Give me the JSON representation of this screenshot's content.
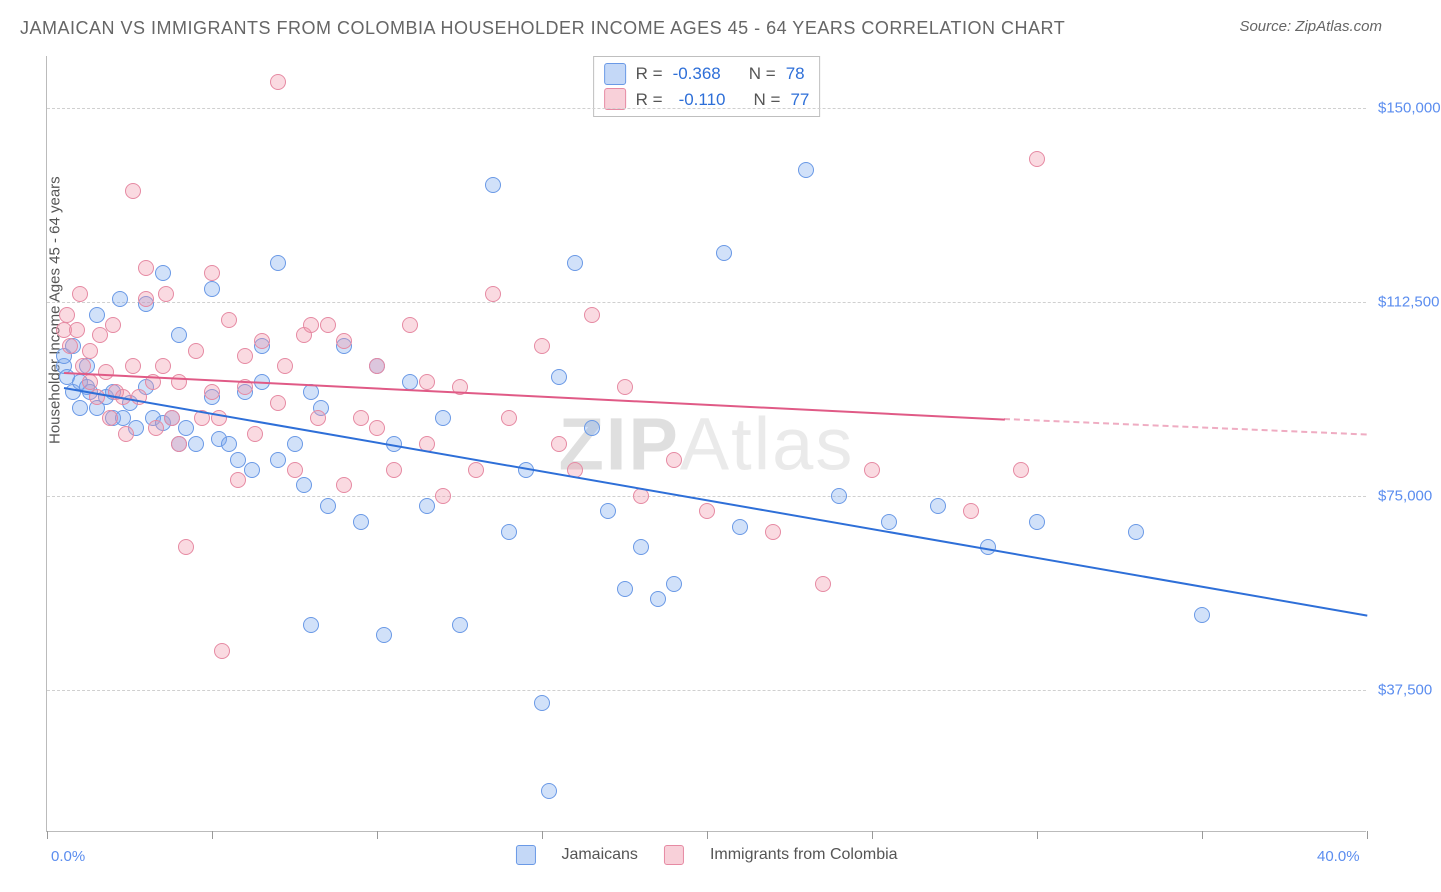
{
  "title": "JAMAICAN VS IMMIGRANTS FROM COLOMBIA HOUSEHOLDER INCOME AGES 45 - 64 YEARS CORRELATION CHART",
  "source": "Source: ZipAtlas.com",
  "ylabel": "Householder Income Ages 45 - 64 years",
  "watermark_a": "ZIP",
  "watermark_b": "Atlas",
  "chart": {
    "type": "scatter",
    "xlim": [
      0,
      40
    ],
    "ylim": [
      10000,
      160000
    ],
    "xticks": [
      0,
      5,
      10,
      15,
      20,
      25,
      30,
      35,
      40
    ],
    "xtick_labels": {
      "0": "0.0%",
      "40": "40.0%"
    },
    "yticks": [
      37500,
      75000,
      112500,
      150000
    ],
    "ytick_labels": [
      "$37,500",
      "$75,000",
      "$112,500",
      "$150,000"
    ],
    "grid_color": "#d0d0d0",
    "background": "#ffffff",
    "marker_radius": 8,
    "series": [
      {
        "key": "a",
        "name": "Jamaicans",
        "color": "#6a99e6",
        "fill": "rgba(124,169,237,.35)",
        "R": "-0.368",
        "N": "78",
        "trend": {
          "x1": 0.5,
          "y1": 96000,
          "x2": 40,
          "y2": 52000,
          "dash_after": 40
        },
        "points": [
          [
            0.5,
            100000
          ],
          [
            0.5,
            102000
          ],
          [
            0.6,
            98000
          ],
          [
            0.8,
            104000
          ],
          [
            0.8,
            95000
          ],
          [
            1.0,
            97000
          ],
          [
            1.0,
            92000
          ],
          [
            1.2,
            96000
          ],
          [
            1.2,
            100000
          ],
          [
            1.3,
            95000
          ],
          [
            1.5,
            110000
          ],
          [
            1.5,
            92000
          ],
          [
            1.8,
            94000
          ],
          [
            2.0,
            90000
          ],
          [
            2.0,
            95000
          ],
          [
            2.2,
            113000
          ],
          [
            2.3,
            90000
          ],
          [
            2.5,
            93000
          ],
          [
            2.7,
            88000
          ],
          [
            3.0,
            112000
          ],
          [
            3.0,
            96000
          ],
          [
            3.2,
            90000
          ],
          [
            3.5,
            118000
          ],
          [
            3.5,
            89000
          ],
          [
            3.8,
            90000
          ],
          [
            4.0,
            106000
          ],
          [
            4.0,
            85000
          ],
          [
            4.2,
            88000
          ],
          [
            4.5,
            85000
          ],
          [
            5.0,
            115000
          ],
          [
            5.0,
            94000
          ],
          [
            5.2,
            86000
          ],
          [
            5.5,
            85000
          ],
          [
            5.8,
            82000
          ],
          [
            6.0,
            95000
          ],
          [
            6.2,
            80000
          ],
          [
            6.5,
            97000
          ],
          [
            6.5,
            104000
          ],
          [
            7.0,
            120000
          ],
          [
            7.0,
            82000
          ],
          [
            7.5,
            85000
          ],
          [
            7.8,
            77000
          ],
          [
            8.0,
            95000
          ],
          [
            8.0,
            50000
          ],
          [
            8.3,
            92000
          ],
          [
            8.5,
            73000
          ],
          [
            9.0,
            104000
          ],
          [
            9.5,
            70000
          ],
          [
            10.0,
            100000
          ],
          [
            10.2,
            48000
          ],
          [
            10.5,
            85000
          ],
          [
            11.0,
            97000
          ],
          [
            11.5,
            73000
          ],
          [
            12.0,
            90000
          ],
          [
            12.5,
            50000
          ],
          [
            13.5,
            135000
          ],
          [
            14.0,
            68000
          ],
          [
            14.5,
            80000
          ],
          [
            15.0,
            35000
          ],
          [
            15.2,
            18000
          ],
          [
            15.5,
            98000
          ],
          [
            16.0,
            120000
          ],
          [
            16.5,
            88000
          ],
          [
            17.0,
            72000
          ],
          [
            17.5,
            57000
          ],
          [
            18.0,
            65000
          ],
          [
            18.5,
            55000
          ],
          [
            19.0,
            58000
          ],
          [
            20.5,
            122000
          ],
          [
            21.0,
            69000
          ],
          [
            23.0,
            138000
          ],
          [
            24.0,
            75000
          ],
          [
            25.5,
            70000
          ],
          [
            27.0,
            73000
          ],
          [
            28.5,
            65000
          ],
          [
            30.0,
            70000
          ],
          [
            33.0,
            68000
          ],
          [
            35.0,
            52000
          ]
        ]
      },
      {
        "key": "b",
        "name": "Immigrants from Colombia",
        "color": "#e68aa3",
        "fill": "rgba(240,150,170,.35)",
        "R": "-0.110",
        "N": "77",
        "trend": {
          "x1": 0.5,
          "y1": 99000,
          "x2": 29,
          "y2": 90000,
          "dash_after": 29,
          "x3": 40,
          "y3": 87000
        },
        "points": [
          [
            0.5,
            107000
          ],
          [
            0.6,
            110000
          ],
          [
            0.7,
            104000
          ],
          [
            0.9,
            107000
          ],
          [
            1.0,
            114000
          ],
          [
            1.1,
            100000
          ],
          [
            1.3,
            103000
          ],
          [
            1.3,
            97000
          ],
          [
            1.5,
            94000
          ],
          [
            1.6,
            106000
          ],
          [
            1.8,
            99000
          ],
          [
            1.9,
            90000
          ],
          [
            2.0,
            108000
          ],
          [
            2.1,
            95000
          ],
          [
            2.3,
            94000
          ],
          [
            2.4,
            87000
          ],
          [
            2.6,
            134000
          ],
          [
            2.6,
            100000
          ],
          [
            2.8,
            94000
          ],
          [
            3.0,
            119000
          ],
          [
            3.0,
            113000
          ],
          [
            3.2,
            97000
          ],
          [
            3.3,
            88000
          ],
          [
            3.5,
            100000
          ],
          [
            3.6,
            114000
          ],
          [
            3.8,
            90000
          ],
          [
            4.0,
            97000
          ],
          [
            4.0,
            85000
          ],
          [
            4.2,
            65000
          ],
          [
            4.5,
            103000
          ],
          [
            4.7,
            90000
          ],
          [
            5.0,
            118000
          ],
          [
            5.0,
            95000
          ],
          [
            5.2,
            90000
          ],
          [
            5.3,
            45000
          ],
          [
            5.5,
            109000
          ],
          [
            5.8,
            78000
          ],
          [
            6.0,
            96000
          ],
          [
            6.0,
            102000
          ],
          [
            6.3,
            87000
          ],
          [
            6.5,
            105000
          ],
          [
            7.0,
            93000
          ],
          [
            7.0,
            155000
          ],
          [
            7.2,
            100000
          ],
          [
            7.5,
            80000
          ],
          [
            7.8,
            106000
          ],
          [
            8.0,
            108000
          ],
          [
            8.2,
            90000
          ],
          [
            8.5,
            108000
          ],
          [
            9.0,
            105000
          ],
          [
            9.0,
            77000
          ],
          [
            9.5,
            90000
          ],
          [
            10.0,
            100000
          ],
          [
            10.0,
            88000
          ],
          [
            10.5,
            80000
          ],
          [
            11.0,
            108000
          ],
          [
            11.5,
            97000
          ],
          [
            11.5,
            85000
          ],
          [
            12.0,
            75000
          ],
          [
            12.5,
            96000
          ],
          [
            13.0,
            80000
          ],
          [
            13.5,
            114000
          ],
          [
            14.0,
            90000
          ],
          [
            15.0,
            104000
          ],
          [
            15.5,
            85000
          ],
          [
            16.0,
            80000
          ],
          [
            16.5,
            110000
          ],
          [
            17.5,
            96000
          ],
          [
            18.0,
            75000
          ],
          [
            19.0,
            82000
          ],
          [
            20.0,
            72000
          ],
          [
            22.0,
            68000
          ],
          [
            23.5,
            58000
          ],
          [
            25.0,
            80000
          ],
          [
            28.0,
            72000
          ],
          [
            30.0,
            140000
          ],
          [
            29.5,
            80000
          ]
        ]
      }
    ]
  },
  "legend_top": [
    {
      "swatch": "a",
      "r_label": "R =",
      "n_label": "N ="
    },
    {
      "swatch": "b",
      "r_label": "R =",
      "n_label": "N ="
    }
  ]
}
